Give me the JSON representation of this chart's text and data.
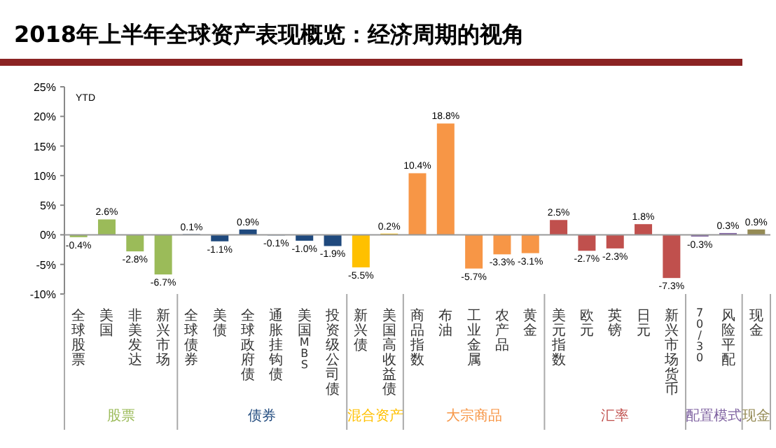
{
  "chart_data": {
    "type": "bar",
    "title": "2018年上半年全球资产表现概览：经济周期的视角",
    "annotations": [
      "YTD"
    ],
    "categories": [
      "全球股票",
      "美国",
      "非美发达",
      "新兴市场",
      "全球债券",
      "美债",
      "全球政府债",
      "通胀挂钩债",
      "美国MBS",
      "投资级公司债",
      "新兴债",
      "美国高收益债",
      "商品指数",
      "布油",
      "工业金属",
      "农产品",
      "黄金",
      "美元指数",
      "欧元",
      "英镑",
      "日元",
      "新兴市场货币",
      "70/30",
      "风险平配",
      "现金"
    ],
    "ylim": [
      -10,
      25
    ],
    "yticks": [
      {
        "value": -10,
        "label": "-10%"
      },
      {
        "value": -5,
        "label": "-5%"
      },
      {
        "value": 0,
        "label": "0%"
      },
      {
        "value": 5,
        "label": "5%"
      },
      {
        "value": 10,
        "label": "10%"
      },
      {
        "value": 15,
        "label": "15%"
      },
      {
        "value": 20,
        "label": "20%"
      },
      {
        "value": 25,
        "label": "25%"
      }
    ],
    "legend": false,
    "series": [
      {
        "name": "股票",
        "color": "#9bbb59",
        "values": [
          -0.4,
          2.6,
          -2.8,
          -6.7,
          null,
          null,
          null,
          null,
          null,
          null,
          null,
          null,
          null,
          null,
          null,
          null,
          null,
          null,
          null,
          null,
          null,
          null,
          null,
          null,
          null
        ],
        "value_labels": [
          "-0.4%",
          "2.6%",
          "-2.8%",
          "-6.7%",
          null,
          null,
          null,
          null,
          null,
          null,
          null,
          null,
          null,
          null,
          null,
          null,
          null,
          null,
          null,
          null,
          null,
          null,
          null,
          null,
          null
        ]
      },
      {
        "name": "债券",
        "color": "#1f497d",
        "values": [
          null,
          null,
          null,
          null,
          0.1,
          -1.1,
          0.9,
          -0.1,
          -1.0,
          -1.9,
          null,
          null,
          null,
          null,
          null,
          null,
          null,
          null,
          null,
          null,
          null,
          null,
          null,
          null,
          null
        ],
        "value_labels": [
          null,
          null,
          null,
          null,
          "0.1%",
          "-1.1%",
          "0.9%",
          "-0.1%",
          "-1.0%",
          "-1.9%",
          null,
          null,
          null,
          null,
          null,
          null,
          null,
          null,
          null,
          null,
          null,
          null,
          null,
          null,
          null
        ]
      },
      {
        "name": "混合资产",
        "color": "#ffc000",
        "values": [
          null,
          null,
          null,
          null,
          null,
          null,
          null,
          null,
          null,
          null,
          -5.5,
          0.2,
          null,
          null,
          null,
          null,
          null,
          null,
          null,
          null,
          null,
          null,
          null,
          null,
          null
        ],
        "value_labels": [
          null,
          null,
          null,
          null,
          null,
          null,
          null,
          null,
          null,
          null,
          "-5.5%",
          "0.2%",
          null,
          null,
          null,
          null,
          null,
          null,
          null,
          null,
          null,
          null,
          null,
          null,
          null
        ]
      },
      {
        "name": "大宗商品",
        "color": "#f79646",
        "values": [
          null,
          null,
          null,
          null,
          null,
          null,
          null,
          null,
          null,
          null,
          null,
          null,
          10.4,
          18.8,
          -5.7,
          -3.3,
          -3.1,
          null,
          null,
          null,
          null,
          null,
          null,
          null,
          null
        ],
        "value_labels": [
          null,
          null,
          null,
          null,
          null,
          null,
          null,
          null,
          null,
          null,
          null,
          null,
          "10.4%",
          "18.8%",
          "-5.7%",
          "-3.3%",
          "-3.1%",
          null,
          null,
          null,
          null,
          null,
          null,
          null,
          null
        ]
      },
      {
        "name": "汇率",
        "color": "#c0504d",
        "values": [
          null,
          null,
          null,
          null,
          null,
          null,
          null,
          null,
          null,
          null,
          null,
          null,
          null,
          null,
          null,
          null,
          null,
          2.5,
          -2.7,
          -2.3,
          1.8,
          -7.3,
          null,
          null,
          null
        ],
        "value_labels": [
          null,
          null,
          null,
          null,
          null,
          null,
          null,
          null,
          null,
          null,
          null,
          null,
          null,
          null,
          null,
          null,
          null,
          "2.5%",
          "-2.7%",
          "-2.3%",
          "1.8%",
          "-7.3%",
          null,
          null,
          null
        ]
      },
      {
        "name": "配置模式",
        "color": "#8064a2",
        "values": [
          null,
          null,
          null,
          null,
          null,
          null,
          null,
          null,
          null,
          null,
          null,
          null,
          null,
          null,
          null,
          null,
          null,
          null,
          null,
          null,
          null,
          null,
          -0.3,
          0.3,
          null
        ],
        "value_labels": [
          null,
          null,
          null,
          null,
          null,
          null,
          null,
          null,
          null,
          null,
          null,
          null,
          null,
          null,
          null,
          null,
          null,
          null,
          null,
          null,
          null,
          null,
          "-0.3%",
          "0.3%",
          null
        ]
      },
      {
        "name": "现金",
        "color": "#948a54",
        "values": [
          null,
          null,
          null,
          null,
          null,
          null,
          null,
          null,
          null,
          null,
          null,
          null,
          null,
          null,
          null,
          null,
          null,
          null,
          null,
          null,
          null,
          null,
          null,
          null,
          0.9
        ],
        "value_labels": [
          null,
          null,
          null,
          null,
          null,
          null,
          null,
          null,
          null,
          null,
          null,
          null,
          null,
          null,
          null,
          null,
          null,
          null,
          null,
          null,
          null,
          null,
          null,
          null,
          "0.9%"
        ]
      }
    ]
  }
}
